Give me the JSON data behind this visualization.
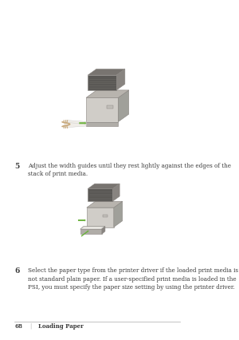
{
  "background_color": "#ffffff",
  "page_width": 3.0,
  "page_height": 4.26,
  "dpi": 100,
  "step5_number": "5",
  "step5_text": "Adjust the width guides until they rest lightly against the edges of the\nstack of print media.",
  "step6_number": "6",
  "step6_text": "Select the paper type from the printer driver if the loaded print media is\nnot standard plain paper. If a user-specified print media is loaded in the\nPSI, you must specify the paper size setting by using the printer driver.",
  "footer_page": "68",
  "footer_sep": "|",
  "footer_text": "Loading Paper",
  "text_color": "#3a3a3a",
  "footer_color": "#3a3a3a",
  "font_size_body": 5.2,
  "font_size_step": 6.5,
  "font_size_footer": 5.0,
  "printer_color_body": "#d0cdc8",
  "printer_color_dark": "#888480",
  "printer_color_top": "#b8b4ae",
  "printer_color_side": "#a0a09a",
  "printer_color_scan": "#5a5855",
  "green_arrow_color": "#6db33f",
  "paper_color": "#f0ede8",
  "hand_color": "#c8a87a",
  "tray_color": "#b0ada8",
  "dark_stripe": "#787470"
}
